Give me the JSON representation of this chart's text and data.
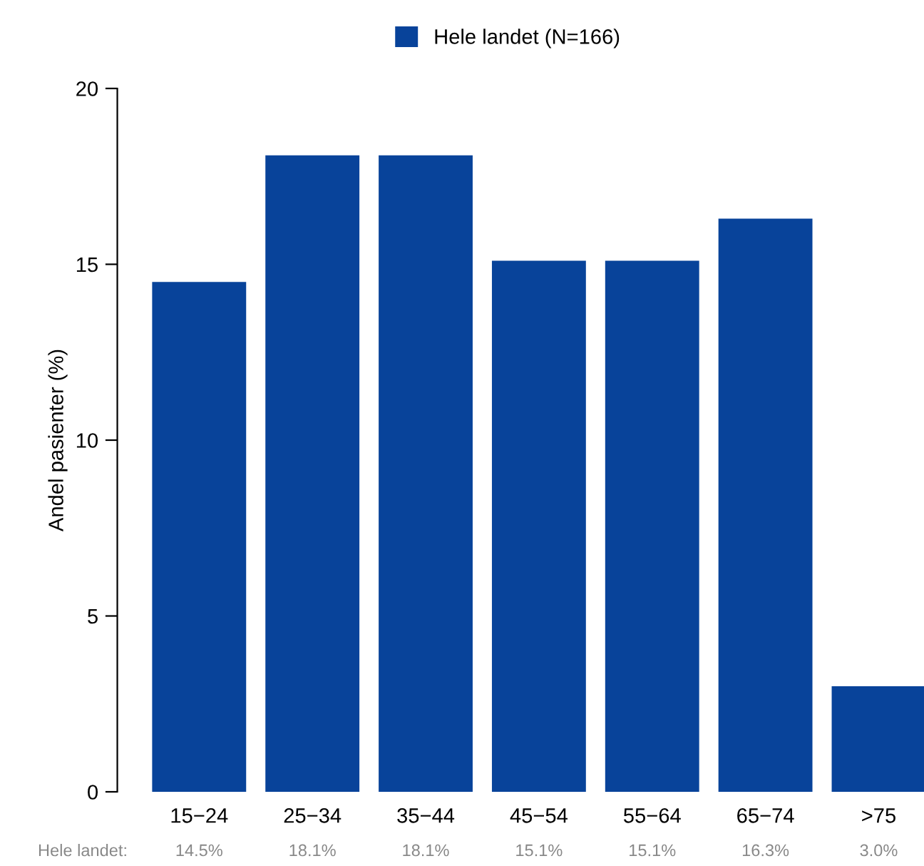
{
  "chart_data": {
    "type": "bar",
    "ylabel": "Andel pasienter (%)",
    "categories": [
      "15−24",
      "25−34",
      "35−44",
      "45−54",
      "55−64",
      "65−74",
      ">75"
    ],
    "series": [
      {
        "name": "Hele landet (N=166)",
        "color": "#08439a",
        "values": [
          14.5,
          18.1,
          18.1,
          15.1,
          15.1,
          16.3,
          3.0
        ],
        "value_labels": [
          "14.5%",
          "18.1%",
          "18.1%",
          "15.1%",
          "15.1%",
          "16.3%",
          "3.0%"
        ]
      }
    ],
    "ylim": [
      0,
      20
    ],
    "yticks": [
      0,
      5,
      10,
      15,
      20
    ],
    "grid": false,
    "legend": "top",
    "annotations": [
      "Hele landet:"
    ]
  }
}
